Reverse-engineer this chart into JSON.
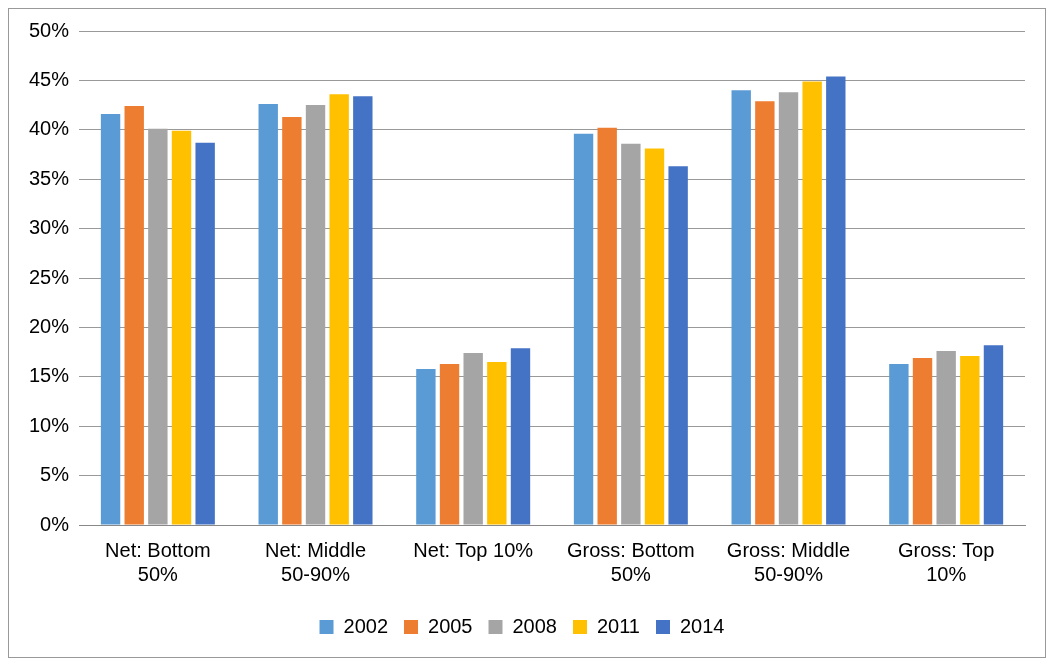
{
  "chart_data": {
    "type": "bar",
    "categories": [
      "Net: Bottom 50%",
      "Net: Middle 50-90%",
      "Net: Top 10%",
      "Gross: Bottom 50%",
      "Gross: Middle 50-90%",
      "Gross: Top 10%"
    ],
    "series": [
      {
        "name": "2002",
        "color": "#5b9bd5",
        "values": [
          41.6,
          42.6,
          15.8,
          39.6,
          44.0,
          16.3
        ]
      },
      {
        "name": "2005",
        "color": "#ed7d31",
        "values": [
          42.4,
          41.3,
          16.3,
          40.2,
          42.9,
          16.9
        ]
      },
      {
        "name": "2008",
        "color": "#a5a5a5",
        "values": [
          40.1,
          42.5,
          17.4,
          38.6,
          43.8,
          17.6
        ]
      },
      {
        "name": "2011",
        "color": "#ffc000",
        "values": [
          39.9,
          43.6,
          16.5,
          38.1,
          44.9,
          17.1
        ]
      },
      {
        "name": "2014",
        "color": "#4472c4",
        "values": [
          38.7,
          43.4,
          17.9,
          36.3,
          45.4,
          18.2
        ]
      }
    ],
    "ylim": [
      0,
      50
    ],
    "yticks": [
      {
        "value": 0,
        "label": "0%"
      },
      {
        "value": 5,
        "label": "5%"
      },
      {
        "value": 10,
        "label": "10%"
      },
      {
        "value": 15,
        "label": "15%"
      },
      {
        "value": 20,
        "label": "20%"
      },
      {
        "value": 25,
        "label": "25%"
      },
      {
        "value": 30,
        "label": "30%"
      },
      {
        "value": 35,
        "label": "35%"
      },
      {
        "value": 40,
        "label": "40%"
      },
      {
        "value": 45,
        "label": "45%"
      },
      {
        "value": 50,
        "label": "50%"
      }
    ],
    "grid": "y",
    "legend": "bottom"
  }
}
